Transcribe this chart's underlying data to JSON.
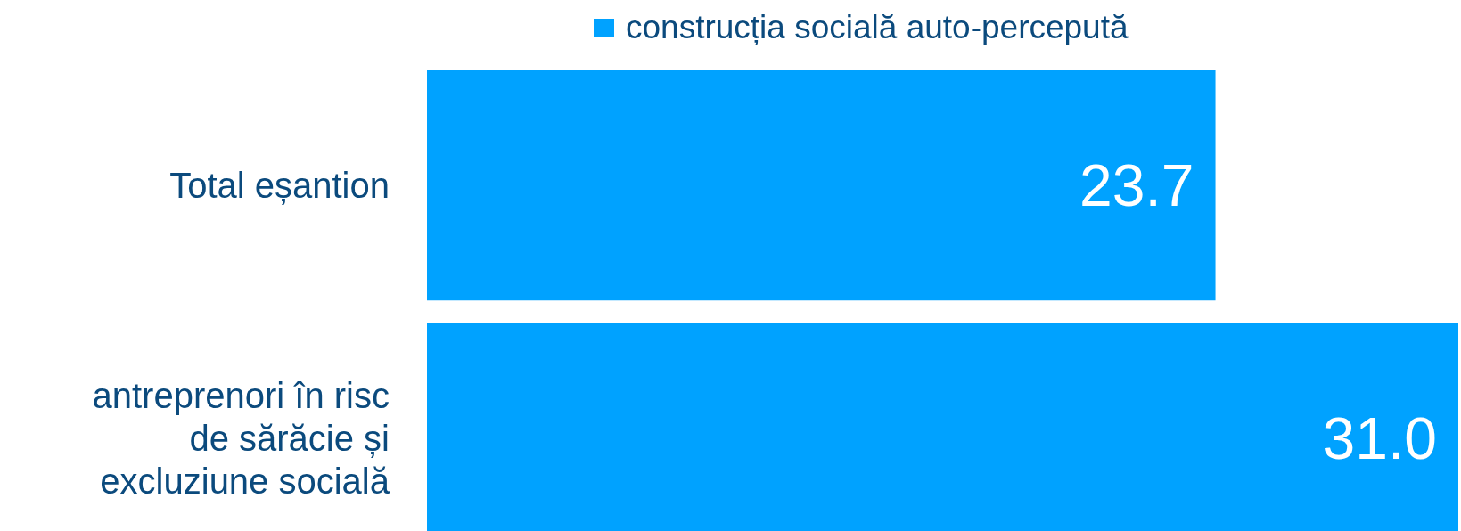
{
  "chart_data": {
    "type": "bar",
    "orientation": "horizontal",
    "categories": [
      "Total eșantion",
      "antreprenori în risc de sărăcie și excluziune socială"
    ],
    "series": [
      {
        "name": "construcția socială auto-percepută",
        "color": "#00a2ff",
        "values": [
          23.7,
          31.0
        ],
        "value_labels": [
          "23.7",
          "31.0"
        ]
      }
    ],
    "legend": "top"
  }
}
